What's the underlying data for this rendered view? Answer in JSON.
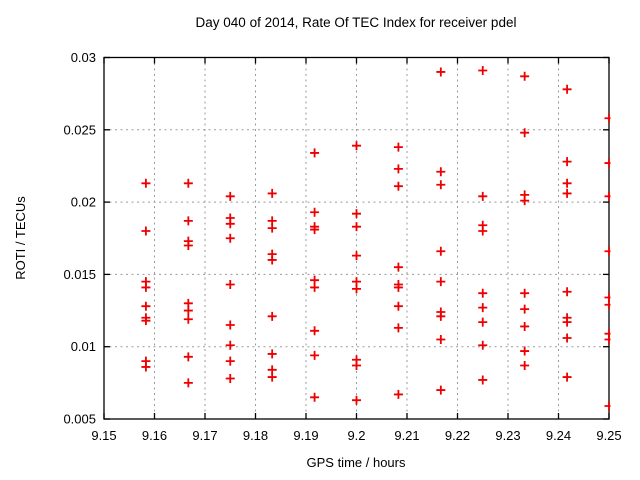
{
  "page": {
    "background": "#ffffff"
  },
  "colors": {
    "marker": "#ee0000",
    "border": "#000000",
    "grid": "#9b9b9b",
    "text": "#000000"
  },
  "chart_data": {
    "type": "scatter",
    "title": "Day 040 of 2014, Rate Of TEC Index for receiver pdel",
    "xlabel": "GPS time / hours",
    "ylabel": "ROTI / TECUs",
    "xlim": [
      9.15,
      9.25
    ],
    "ylim": [
      0.005,
      0.03
    ],
    "grid": "dashed",
    "legend": "none",
    "marker": {
      "shape": "plus",
      "size": 9,
      "color": "#ee0000"
    },
    "xticks": {
      "values": [
        9.15,
        9.16,
        9.17,
        9.18,
        9.19,
        9.2,
        9.21,
        9.22,
        9.23,
        9.24,
        9.25
      ],
      "labels": [
        "9.15",
        "9.16",
        "9.17",
        "9.18",
        "9.19",
        "9.2",
        "9.21",
        "9.22",
        "9.23",
        "9.24",
        "9.25"
      ]
    },
    "yticks": {
      "values": [
        0.005,
        0.01,
        0.015,
        0.02,
        0.025,
        0.03
      ],
      "labels": [
        "0.005",
        "0.01",
        "0.015",
        "0.02",
        "0.025",
        "0.03"
      ]
    },
    "series": [
      {
        "name": "ROTI",
        "points": [
          [
            9.1583,
            0.0213
          ],
          [
            9.1583,
            0.018
          ],
          [
            9.1583,
            0.0145
          ],
          [
            9.1583,
            0.0141
          ],
          [
            9.1583,
            0.0128
          ],
          [
            9.1583,
            0.012
          ],
          [
            9.1583,
            0.0118
          ],
          [
            9.1583,
            0.009
          ],
          [
            9.1583,
            0.0086
          ],
          [
            9.1667,
            0.0213
          ],
          [
            9.1667,
            0.0187
          ],
          [
            9.1667,
            0.0173
          ],
          [
            9.1667,
            0.017
          ],
          [
            9.1667,
            0.013
          ],
          [
            9.1667,
            0.0125
          ],
          [
            9.1667,
            0.0119
          ],
          [
            9.1667,
            0.0093
          ],
          [
            9.1667,
            0.0075
          ],
          [
            9.175,
            0.0204
          ],
          [
            9.175,
            0.0189
          ],
          [
            9.175,
            0.0185
          ],
          [
            9.175,
            0.0175
          ],
          [
            9.175,
            0.0143
          ],
          [
            9.175,
            0.0115
          ],
          [
            9.175,
            0.0101
          ],
          [
            9.175,
            0.009
          ],
          [
            9.175,
            0.0078
          ],
          [
            9.1833,
            0.0206
          ],
          [
            9.1833,
            0.0187
          ],
          [
            9.1833,
            0.0182
          ],
          [
            9.1833,
            0.0164
          ],
          [
            9.1833,
            0.016
          ],
          [
            9.1833,
            0.0121
          ],
          [
            9.1833,
            0.0095
          ],
          [
            9.1833,
            0.0084
          ],
          [
            9.1833,
            0.0079
          ],
          [
            9.1917,
            0.0234
          ],
          [
            9.1917,
            0.0193
          ],
          [
            9.1917,
            0.0183
          ],
          [
            9.1917,
            0.0181
          ],
          [
            9.1917,
            0.0146
          ],
          [
            9.1917,
            0.0141
          ],
          [
            9.1917,
            0.0111
          ],
          [
            9.1917,
            0.0094
          ],
          [
            9.1917,
            0.0065
          ],
          [
            9.2,
            0.0239
          ],
          [
            9.2,
            0.0192
          ],
          [
            9.2,
            0.0183
          ],
          [
            9.2,
            0.0163
          ],
          [
            9.2,
            0.0145
          ],
          [
            9.2,
            0.014
          ],
          [
            9.2,
            0.0091
          ],
          [
            9.2,
            0.0087
          ],
          [
            9.2,
            0.0063
          ],
          [
            9.2083,
            0.0238
          ],
          [
            9.2083,
            0.0223
          ],
          [
            9.2083,
            0.0211
          ],
          [
            9.2083,
            0.0155
          ],
          [
            9.2083,
            0.0143
          ],
          [
            9.2083,
            0.0141
          ],
          [
            9.2083,
            0.0128
          ],
          [
            9.2083,
            0.0113
          ],
          [
            9.2083,
            0.0067
          ],
          [
            9.2167,
            0.029
          ],
          [
            9.2167,
            0.0221
          ],
          [
            9.2167,
            0.0212
          ],
          [
            9.2167,
            0.0166
          ],
          [
            9.2167,
            0.0145
          ],
          [
            9.2167,
            0.0124
          ],
          [
            9.2167,
            0.0121
          ],
          [
            9.2167,
            0.0105
          ],
          [
            9.2167,
            0.007
          ],
          [
            9.225,
            0.0291
          ],
          [
            9.225,
            0.0204
          ],
          [
            9.225,
            0.0184
          ],
          [
            9.225,
            0.018
          ],
          [
            9.225,
            0.0137
          ],
          [
            9.225,
            0.0127
          ],
          [
            9.225,
            0.0117
          ],
          [
            9.225,
            0.0101
          ],
          [
            9.225,
            0.0077
          ],
          [
            9.2333,
            0.0287
          ],
          [
            9.2333,
            0.0248
          ],
          [
            9.2333,
            0.0205
          ],
          [
            9.2333,
            0.0201
          ],
          [
            9.2333,
            0.0137
          ],
          [
            9.2333,
            0.0126
          ],
          [
            9.2333,
            0.0114
          ],
          [
            9.2333,
            0.0097
          ],
          [
            9.2333,
            0.0087
          ],
          [
            9.2417,
            0.0278
          ],
          [
            9.2417,
            0.0228
          ],
          [
            9.2417,
            0.0213
          ],
          [
            9.2417,
            0.0206
          ],
          [
            9.2417,
            0.0138
          ],
          [
            9.2417,
            0.012
          ],
          [
            9.2417,
            0.0117
          ],
          [
            9.2417,
            0.0106
          ],
          [
            9.2417,
            0.0079
          ],
          [
            9.25,
            0.0258
          ],
          [
            9.25,
            0.0227
          ],
          [
            9.25,
            0.0204
          ],
          [
            9.25,
            0.0166
          ],
          [
            9.25,
            0.0134
          ],
          [
            9.25,
            0.0129
          ],
          [
            9.25,
            0.0109
          ],
          [
            9.25,
            0.0105
          ],
          [
            9.25,
            0.0059
          ]
        ]
      }
    ]
  }
}
